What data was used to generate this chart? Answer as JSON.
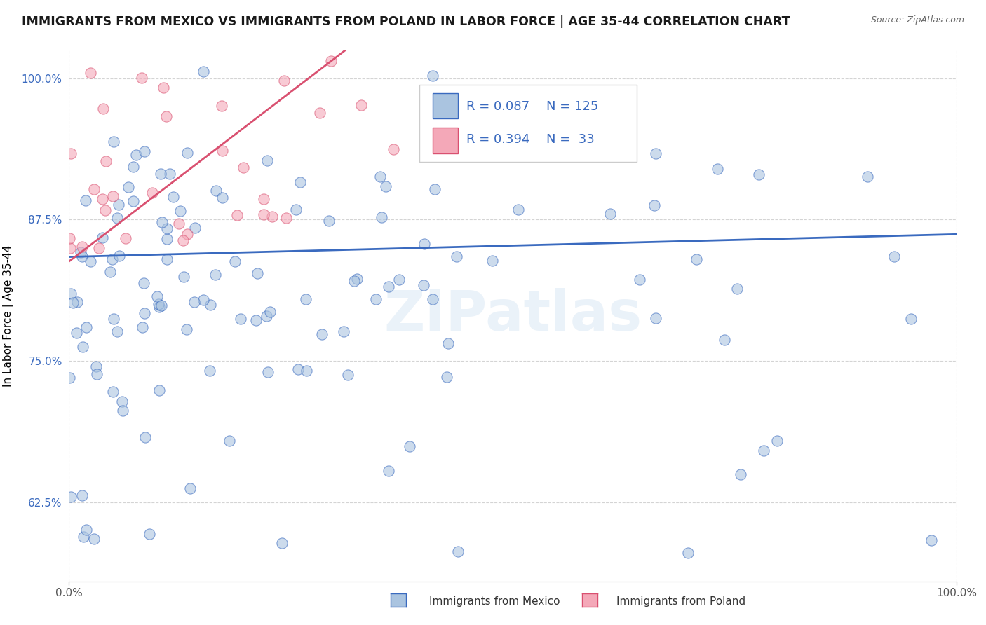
{
  "title": "IMMIGRANTS FROM MEXICO VS IMMIGRANTS FROM POLAND IN LABOR FORCE | AGE 35-44 CORRELATION CHART",
  "source": "Source: ZipAtlas.com",
  "ylabel": "In Labor Force | Age 35-44",
  "watermark": "ZIPatlas",
  "legend_labels": [
    "Immigrants from Mexico",
    "Immigrants from Poland"
  ],
  "R_mexico": 0.087,
  "N_mexico": 125,
  "R_poland": 0.394,
  "N_poland": 33,
  "color_mexico": "#aac4e0",
  "color_poland": "#f4a8b8",
  "line_color_mexico": "#3a6abf",
  "line_color_poland": "#d95070",
  "xlim": [
    0.0,
    1.0
  ],
  "ylim": [
    0.555,
    1.025
  ],
  "yticks": [
    0.625,
    0.75,
    0.875,
    1.0
  ],
  "ytick_labels": [
    "62.5%",
    "75.0%",
    "87.5%",
    "100.0%"
  ],
  "xtick_labels": [
    "0.0%",
    "100.0%"
  ],
  "background_color": "#ffffff",
  "grid_color": "#d0d0d0",
  "title_fontsize": 12.5,
  "axis_label_fontsize": 11,
  "tick_fontsize": 11,
  "legend_fontsize": 13
}
